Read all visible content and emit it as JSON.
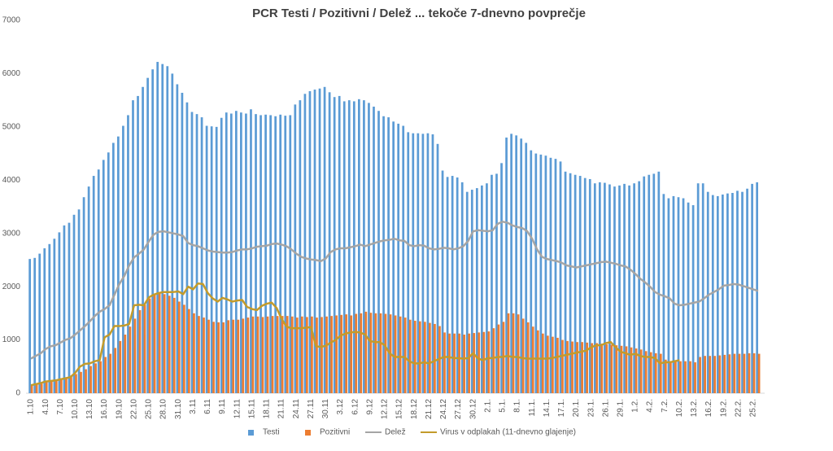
{
  "chart_data": {
    "type": "bar_line",
    "title": "PCR Testi / Pozitivni / Delež ... tekoče 7-dnevno povprečje",
    "categories": [
      "1.10",
      null,
      null,
      "4.10",
      null,
      null,
      "7.10",
      null,
      null,
      "10.10",
      null,
      null,
      "13.10",
      null,
      null,
      "16.10",
      null,
      null,
      "19.10",
      null,
      null,
      "22.10",
      null,
      null,
      "25.10",
      null,
      null,
      "28.10",
      null,
      null,
      "31.10",
      null,
      null,
      "3.11",
      null,
      null,
      "6.11",
      null,
      null,
      "9.11",
      null,
      null,
      "12.11",
      null,
      null,
      "15.11",
      null,
      null,
      "18.11",
      null,
      null,
      "21.11",
      null,
      null,
      "24.11",
      null,
      null,
      "27.11",
      null,
      null,
      "30.11",
      null,
      null,
      "3.12",
      null,
      null,
      "6.12",
      null,
      null,
      "9.12",
      null,
      null,
      "12.12",
      null,
      null,
      "15.12",
      null,
      null,
      "18.12",
      null,
      null,
      "21.12",
      null,
      null,
      "24.12",
      null,
      null,
      "27.12",
      null,
      null,
      "30.12",
      null,
      null,
      "2.1.",
      null,
      null,
      "5.1.",
      null,
      null,
      "8.1.",
      null,
      null,
      "11.1.",
      null,
      null,
      "14.1.",
      null,
      null,
      "17.1.",
      null,
      null,
      "20.1.",
      null,
      null,
      "23.1.",
      null,
      null,
      "26.1.",
      null,
      null,
      "29.1.",
      null,
      null,
      "1.2.",
      null,
      null,
      "4.2.",
      null,
      null,
      "7.2.",
      null,
      null,
      "10.2.",
      null,
      null,
      "13.2.",
      null,
      null,
      "16.2.",
      null,
      null,
      "19.2.",
      null,
      null,
      "22.2.",
      null,
      null,
      "25.2.",
      null
    ],
    "series": [
      {
        "name": "Testi",
        "kind": "bar",
        "color": "#5b9bd5",
        "values": [
          2520,
          2540,
          2620,
          2720,
          2800,
          2900,
          3020,
          3150,
          3200,
          3350,
          3450,
          3680,
          3880,
          4080,
          4200,
          4380,
          4520,
          4700,
          4820,
          5020,
          5220,
          5500,
          5580,
          5750,
          5920,
          6080,
          6220,
          6180,
          6140,
          6000,
          5800,
          5640,
          5460,
          5280,
          5240,
          5180,
          5020,
          5010,
          5000,
          5170,
          5270,
          5250,
          5300,
          5270,
          5250,
          5330,
          5240,
          5220,
          5230,
          5220,
          5200,
          5230,
          5210,
          5220,
          5420,
          5500,
          5620,
          5670,
          5700,
          5720,
          5750,
          5650,
          5560,
          5580,
          5480,
          5500,
          5480,
          5520,
          5500,
          5450,
          5380,
          5300,
          5200,
          5180,
          5100,
          5060,
          5020,
          4900,
          4880,
          4880,
          4870,
          4880,
          4860,
          4680,
          4180,
          4060,
          4080,
          4050,
          3960,
          3780,
          3820,
          3850,
          3900,
          3940,
          4100,
          4120,
          4320,
          4800,
          4870,
          4840,
          4780,
          4700,
          4560,
          4500,
          4480,
          4460,
          4420,
          4400,
          4350,
          4160,
          4130,
          4100,
          4080,
          4040,
          4020,
          3940,
          3960,
          3950,
          3920,
          3880,
          3900,
          3930,
          3900,
          3940,
          3980,
          4070,
          4100,
          4120,
          4160,
          3740,
          3660,
          3700,
          3680,
          3660,
          3580,
          3530,
          3940,
          3940,
          3780,
          3720,
          3700,
          3730,
          3750,
          3760,
          3800,
          3780,
          3840,
          3930,
          3960
        ]
      },
      {
        "name": "Pozitivni",
        "kind": "bar",
        "color": "#ed7d31",
        "values": [
          150,
          160,
          180,
          230,
          240,
          250,
          280,
          300,
          330,
          360,
          400,
          450,
          510,
          560,
          600,
          680,
          740,
          850,
          980,
          1100,
          1250,
          1400,
          1560,
          1660,
          1780,
          1850,
          1870,
          1860,
          1830,
          1790,
          1720,
          1660,
          1580,
          1500,
          1450,
          1420,
          1380,
          1340,
          1330,
          1330,
          1370,
          1380,
          1380,
          1400,
          1420,
          1440,
          1440,
          1430,
          1440,
          1450,
          1450,
          1450,
          1450,
          1440,
          1420,
          1440,
          1430,
          1440,
          1420,
          1430,
          1440,
          1450,
          1460,
          1470,
          1480,
          1460,
          1490,
          1500,
          1530,
          1510,
          1500,
          1500,
          1490,
          1480,
          1460,
          1440,
          1420,
          1380,
          1360,
          1350,
          1340,
          1320,
          1300,
          1260,
          1140,
          1120,
          1120,
          1120,
          1100,
          1120,
          1130,
          1140,
          1150,
          1160,
          1220,
          1290,
          1340,
          1500,
          1500,
          1480,
          1400,
          1330,
          1250,
          1180,
          1120,
          1080,
          1060,
          1040,
          1000,
          980,
          970,
          960,
          960,
          950,
          940,
          940,
          930,
          920,
          910,
          900,
          890,
          880,
          860,
          840,
          820,
          790,
          770,
          750,
          740,
          630,
          600,
          600,
          600,
          600,
          600,
          580,
          680,
          700,
          700,
          700,
          710,
          720,
          730,
          740,
          740,
          740,
          750,
          750,
          740
        ]
      },
      {
        "name": "Delež",
        "kind": "line",
        "color": "#a5a5a5",
        "values": [
          650,
          700,
          750,
          830,
          880,
          900,
          950,
          1000,
          1030,
          1100,
          1180,
          1260,
          1350,
          1450,
          1530,
          1580,
          1650,
          1850,
          2050,
          2200,
          2400,
          2550,
          2620,
          2700,
          2850,
          2980,
          3030,
          3040,
          3020,
          3000,
          2980,
          2950,
          2820,
          2780,
          2760,
          2720,
          2680,
          2660,
          2650,
          2640,
          2640,
          2650,
          2680,
          2700,
          2700,
          2720,
          2750,
          2760,
          2770,
          2800,
          2810,
          2790,
          2760,
          2700,
          2620,
          2560,
          2530,
          2510,
          2500,
          2480,
          2530,
          2650,
          2700,
          2720,
          2720,
          2740,
          2760,
          2790,
          2760,
          2790,
          2820,
          2850,
          2870,
          2880,
          2900,
          2870,
          2860,
          2780,
          2760,
          2780,
          2770,
          2720,
          2700,
          2710,
          2730,
          2720,
          2700,
          2720,
          2760,
          2860,
          3040,
          3060,
          3050,
          3040,
          3060,
          3180,
          3220,
          3200,
          3150,
          3120,
          3100,
          3040,
          2900,
          2700,
          2560,
          2520,
          2500,
          2480,
          2450,
          2400,
          2380,
          2360,
          2380,
          2400,
          2420,
          2440,
          2460,
          2470,
          2450,
          2430,
          2400,
          2380,
          2320,
          2240,
          2150,
          2080,
          2000,
          1900,
          1850,
          1820,
          1780,
          1680,
          1650,
          1660,
          1680,
          1700,
          1720,
          1780,
          1850,
          1900,
          1950,
          2020,
          2030,
          2050,
          2040,
          2010,
          1980,
          1950,
          1920
        ]
      },
      {
        "name": "Virus v odplakah (11-dnevno glajenje)",
        "kind": "line",
        "color": "#c39b2b",
        "values": [
          150,
          170,
          190,
          220,
          230,
          240,
          260,
          280,
          300,
          380,
          500,
          550,
          560,
          600,
          620,
          1050,
          1100,
          1260,
          1260,
          1270,
          1300,
          1650,
          1660,
          1650,
          1800,
          1850,
          1880,
          1900,
          1900,
          1900,
          1910,
          1860,
          2000,
          1950,
          2060,
          2050,
          1880,
          1780,
          1720,
          1790,
          1760,
          1720,
          1740,
          1750,
          1620,
          1580,
          1560,
          1640,
          1680,
          1700,
          1600,
          1400,
          1250,
          1220,
          1220,
          1220,
          1230,
          1240,
          880,
          870,
          890,
          950,
          1000,
          1080,
          1120,
          1140,
          1150,
          1140,
          1100,
          980,
          960,
          960,
          900,
          750,
          680,
          680,
          680,
          600,
          560,
          560,
          580,
          560,
          600,
          640,
          680,
          680,
          660,
          660,
          650,
          660,
          750,
          650,
          620,
          660,
          660,
          680,
          680,
          700,
          680,
          680,
          660,
          650,
          650,
          650,
          650,
          650,
          660,
          680,
          700,
          720,
          740,
          760,
          780,
          800,
          860,
          900,
          900,
          940,
          960,
          860,
          780,
          750,
          720,
          740,
          700,
          680,
          680,
          660,
          560,
          580,
          580,
          600,
          620,
          null,
          null,
          null,
          null,
          null,
          null,
          null,
          null,
          null,
          null,
          null,
          null,
          null,
          null,
          null,
          null
        ]
      }
    ],
    "ylim": [
      0,
      7000
    ],
    "yticks": [
      0,
      1000,
      2000,
      3000,
      4000,
      5000,
      6000,
      7000
    ],
    "grid": false,
    "legend": "bottom"
  }
}
